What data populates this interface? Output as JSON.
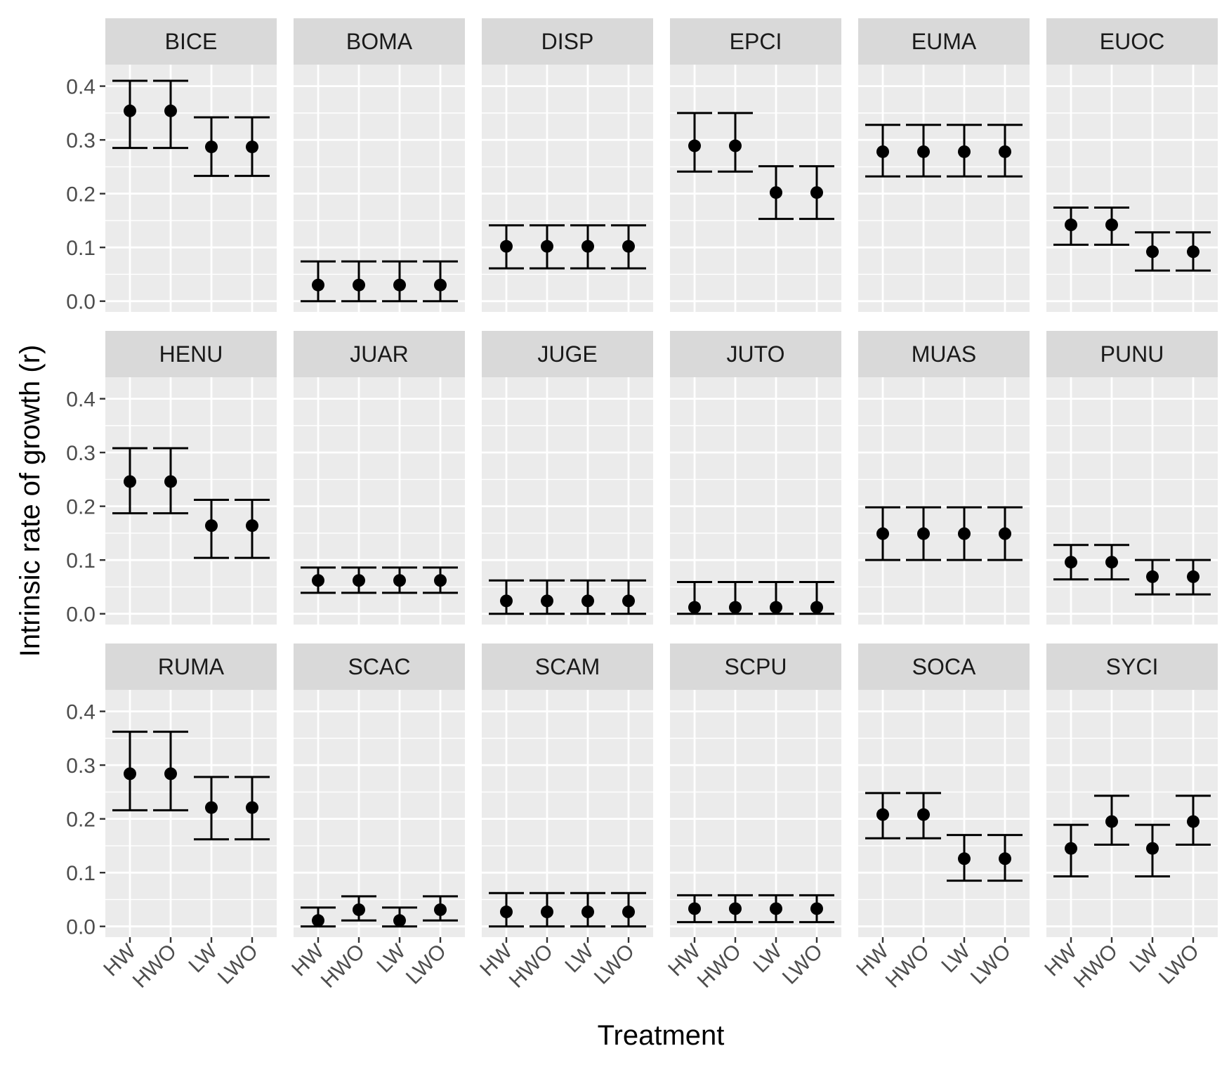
{
  "chart_data": {
    "type": "scatter",
    "style": "faceted point estimates with error bars (6 columns x 3 rows)",
    "xlabel": "Treatment",
    "ylabel": "Intrinsic rate of growth (r)",
    "categories": [
      "HW",
      "HWO",
      "LW",
      "LWO"
    ],
    "ylim": [
      -0.02,
      0.44
    ],
    "yticks": [
      0.0,
      0.1,
      0.2,
      0.3,
      0.4
    ],
    "ytick_labels": [
      "0.0",
      "0.1",
      "0.2",
      "0.3",
      "0.4"
    ],
    "grid": true,
    "legend": "none",
    "colors": {
      "panel_bg": "#ebebeb",
      "strip_bg": "#d9d9d9",
      "grid": "#ffffff",
      "marks": "#000000",
      "tick": "#333333"
    },
    "facets": [
      {
        "label": "BICE",
        "points": [
          {
            "x": "HW",
            "y": 0.354,
            "lo": 0.285,
            "hi": 0.41
          },
          {
            "x": "HWO",
            "y": 0.354,
            "lo": 0.285,
            "hi": 0.41
          },
          {
            "x": "LW",
            "y": 0.287,
            "lo": 0.233,
            "hi": 0.342
          },
          {
            "x": "LWO",
            "y": 0.287,
            "lo": 0.233,
            "hi": 0.342
          }
        ]
      },
      {
        "label": "BOMA",
        "points": [
          {
            "x": "HW",
            "y": 0.03,
            "lo": 0.0,
            "hi": 0.074
          },
          {
            "x": "HWO",
            "y": 0.03,
            "lo": 0.0,
            "hi": 0.074
          },
          {
            "x": "LW",
            "y": 0.03,
            "lo": 0.0,
            "hi": 0.074
          },
          {
            "x": "LWO",
            "y": 0.03,
            "lo": 0.0,
            "hi": 0.074
          }
        ]
      },
      {
        "label": "DISP",
        "points": [
          {
            "x": "HW",
            "y": 0.102,
            "lo": 0.061,
            "hi": 0.141
          },
          {
            "x": "HWO",
            "y": 0.102,
            "lo": 0.061,
            "hi": 0.141
          },
          {
            "x": "LW",
            "y": 0.102,
            "lo": 0.061,
            "hi": 0.141
          },
          {
            "x": "LWO",
            "y": 0.102,
            "lo": 0.061,
            "hi": 0.141
          }
        ]
      },
      {
        "label": "EPCI",
        "points": [
          {
            "x": "HW",
            "y": 0.289,
            "lo": 0.241,
            "hi": 0.35
          },
          {
            "x": "HWO",
            "y": 0.289,
            "lo": 0.241,
            "hi": 0.35
          },
          {
            "x": "LW",
            "y": 0.202,
            "lo": 0.153,
            "hi": 0.251
          },
          {
            "x": "LWO",
            "y": 0.202,
            "lo": 0.153,
            "hi": 0.251
          }
        ]
      },
      {
        "label": "EUMA",
        "points": [
          {
            "x": "HW",
            "y": 0.278,
            "lo": 0.232,
            "hi": 0.328
          },
          {
            "x": "HWO",
            "y": 0.278,
            "lo": 0.232,
            "hi": 0.328
          },
          {
            "x": "LW",
            "y": 0.278,
            "lo": 0.232,
            "hi": 0.328
          },
          {
            "x": "LWO",
            "y": 0.278,
            "lo": 0.232,
            "hi": 0.328
          }
        ]
      },
      {
        "label": "EUOC",
        "points": [
          {
            "x": "HW",
            "y": 0.142,
            "lo": 0.105,
            "hi": 0.174
          },
          {
            "x": "HWO",
            "y": 0.142,
            "lo": 0.105,
            "hi": 0.174
          },
          {
            "x": "LW",
            "y": 0.092,
            "lo": 0.057,
            "hi": 0.128
          },
          {
            "x": "LWO",
            "y": 0.092,
            "lo": 0.057,
            "hi": 0.128
          }
        ]
      },
      {
        "label": "HENU",
        "points": [
          {
            "x": "HW",
            "y": 0.246,
            "lo": 0.187,
            "hi": 0.308
          },
          {
            "x": "HWO",
            "y": 0.246,
            "lo": 0.187,
            "hi": 0.308
          },
          {
            "x": "LW",
            "y": 0.164,
            "lo": 0.104,
            "hi": 0.212
          },
          {
            "x": "LWO",
            "y": 0.164,
            "lo": 0.104,
            "hi": 0.212
          }
        ]
      },
      {
        "label": "JUAR",
        "points": [
          {
            "x": "HW",
            "y": 0.062,
            "lo": 0.039,
            "hi": 0.086
          },
          {
            "x": "HWO",
            "y": 0.062,
            "lo": 0.039,
            "hi": 0.086
          },
          {
            "x": "LW",
            "y": 0.062,
            "lo": 0.039,
            "hi": 0.086
          },
          {
            "x": "LWO",
            "y": 0.062,
            "lo": 0.039,
            "hi": 0.086
          }
        ]
      },
      {
        "label": "JUGE",
        "points": [
          {
            "x": "HW",
            "y": 0.024,
            "lo": 0.0,
            "hi": 0.062
          },
          {
            "x": "HWO",
            "y": 0.024,
            "lo": 0.0,
            "hi": 0.062
          },
          {
            "x": "LW",
            "y": 0.024,
            "lo": 0.0,
            "hi": 0.062
          },
          {
            "x": "LWO",
            "y": 0.024,
            "lo": 0.0,
            "hi": 0.062
          }
        ]
      },
      {
        "label": "JUTO",
        "points": [
          {
            "x": "HW",
            "y": 0.012,
            "lo": 0.0,
            "hi": 0.059
          },
          {
            "x": "HWO",
            "y": 0.012,
            "lo": 0.0,
            "hi": 0.059
          },
          {
            "x": "LW",
            "y": 0.012,
            "lo": 0.0,
            "hi": 0.059
          },
          {
            "x": "LWO",
            "y": 0.012,
            "lo": 0.0,
            "hi": 0.059
          }
        ]
      },
      {
        "label": "MUAS",
        "points": [
          {
            "x": "HW",
            "y": 0.149,
            "lo": 0.1,
            "hi": 0.198
          },
          {
            "x": "HWO",
            "y": 0.149,
            "lo": 0.1,
            "hi": 0.198
          },
          {
            "x": "LW",
            "y": 0.149,
            "lo": 0.1,
            "hi": 0.198
          },
          {
            "x": "LWO",
            "y": 0.149,
            "lo": 0.1,
            "hi": 0.198
          }
        ]
      },
      {
        "label": "PUNU",
        "points": [
          {
            "x": "HW",
            "y": 0.096,
            "lo": 0.064,
            "hi": 0.128
          },
          {
            "x": "HWO",
            "y": 0.096,
            "lo": 0.064,
            "hi": 0.128
          },
          {
            "x": "LW",
            "y": 0.069,
            "lo": 0.036,
            "hi": 0.1
          },
          {
            "x": "LWO",
            "y": 0.069,
            "lo": 0.036,
            "hi": 0.1
          }
        ]
      },
      {
        "label": "RUMA",
        "points": [
          {
            "x": "HW",
            "y": 0.284,
            "lo": 0.216,
            "hi": 0.362
          },
          {
            "x": "HWO",
            "y": 0.284,
            "lo": 0.216,
            "hi": 0.362
          },
          {
            "x": "LW",
            "y": 0.221,
            "lo": 0.162,
            "hi": 0.278
          },
          {
            "x": "LWO",
            "y": 0.221,
            "lo": 0.162,
            "hi": 0.278
          }
        ]
      },
      {
        "label": "SCAC",
        "points": [
          {
            "x": "HW",
            "y": 0.011,
            "lo": 0.0,
            "hi": 0.035
          },
          {
            "x": "HWO",
            "y": 0.031,
            "lo": 0.011,
            "hi": 0.056
          },
          {
            "x": "LW",
            "y": 0.011,
            "lo": 0.0,
            "hi": 0.035
          },
          {
            "x": "LWO",
            "y": 0.031,
            "lo": 0.011,
            "hi": 0.056
          }
        ]
      },
      {
        "label": "SCAM",
        "points": [
          {
            "x": "HW",
            "y": 0.027,
            "lo": 0.0,
            "hi": 0.062
          },
          {
            "x": "HWO",
            "y": 0.027,
            "lo": 0.0,
            "hi": 0.062
          },
          {
            "x": "LW",
            "y": 0.027,
            "lo": 0.0,
            "hi": 0.062
          },
          {
            "x": "LWO",
            "y": 0.027,
            "lo": 0.0,
            "hi": 0.062
          }
        ]
      },
      {
        "label": "SCPU",
        "points": [
          {
            "x": "HW",
            "y": 0.033,
            "lo": 0.008,
            "hi": 0.058
          },
          {
            "x": "HWO",
            "y": 0.033,
            "lo": 0.008,
            "hi": 0.058
          },
          {
            "x": "LW",
            "y": 0.033,
            "lo": 0.008,
            "hi": 0.058
          },
          {
            "x": "LWO",
            "y": 0.033,
            "lo": 0.008,
            "hi": 0.058
          }
        ]
      },
      {
        "label": "SOCA",
        "points": [
          {
            "x": "HW",
            "y": 0.208,
            "lo": 0.164,
            "hi": 0.248
          },
          {
            "x": "HWO",
            "y": 0.208,
            "lo": 0.164,
            "hi": 0.248
          },
          {
            "x": "LW",
            "y": 0.126,
            "lo": 0.085,
            "hi": 0.17
          },
          {
            "x": "LWO",
            "y": 0.126,
            "lo": 0.085,
            "hi": 0.17
          }
        ]
      },
      {
        "label": "SYCI",
        "points": [
          {
            "x": "HW",
            "y": 0.145,
            "lo": 0.093,
            "hi": 0.189
          },
          {
            "x": "HWO",
            "y": 0.195,
            "lo": 0.152,
            "hi": 0.243
          },
          {
            "x": "LW",
            "y": 0.145,
            "lo": 0.093,
            "hi": 0.189
          },
          {
            "x": "LWO",
            "y": 0.195,
            "lo": 0.152,
            "hi": 0.243
          }
        ]
      }
    ]
  }
}
